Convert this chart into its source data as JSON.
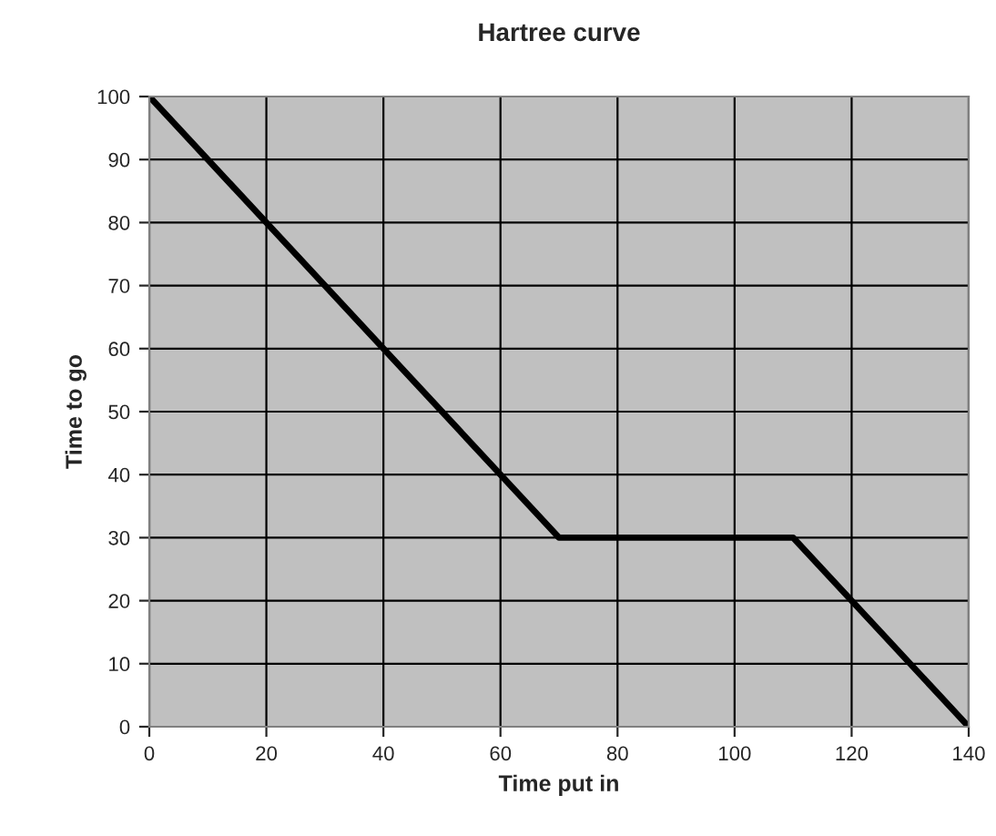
{
  "chart_data": {
    "type": "line",
    "title": "Hartree curve",
    "xlabel": "Time put in",
    "ylabel": "Time to go",
    "x": [
      0,
      70,
      110,
      140
    ],
    "series": [
      {
        "color": "#000000",
        "values": [
          100,
          30,
          30,
          0
        ]
      }
    ],
    "xlim": [
      0,
      140
    ],
    "xticks": [
      0,
      20,
      40,
      60,
      80,
      100,
      120,
      140
    ],
    "ylim": [
      0,
      100
    ],
    "yticks": [
      0,
      10,
      20,
      30,
      40,
      50,
      60,
      70,
      80,
      90,
      100
    ],
    "grid": true,
    "legend": false,
    "marker": "none",
    "line_style": "solid"
  }
}
